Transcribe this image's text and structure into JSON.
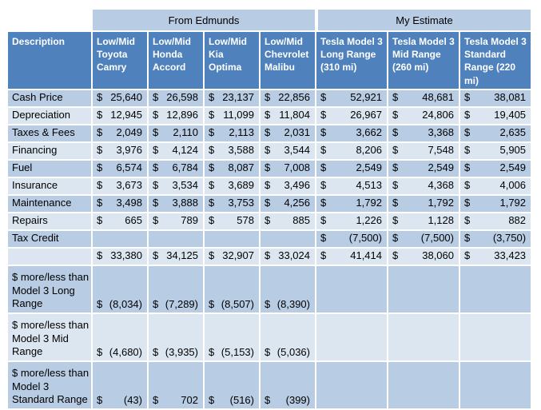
{
  "colors": {
    "header_dark": "#4f81bd",
    "band_medium": "#b8cce4",
    "band_light": "#dce6f1",
    "header_text": "#ffffff",
    "body_text": "#000000",
    "page_background": "#ffffff"
  },
  "chart_data": {
    "type": "table",
    "currency_symbol": "$",
    "group_headers": [
      {
        "label": "From Edmunds",
        "span": 4
      },
      {
        "label": "My Estimate",
        "span": 3
      }
    ],
    "columns": [
      "Description",
      "Low/Mid Toyota Camry",
      "Low/Mid Honda Accord",
      "Low/Mid Kia Optima",
      "Low/Mid Chevrolet Malibu",
      "Tesla Model 3 Long Range (310 mi)",
      "Tesla Model 3 Mid Range (260 mi)",
      "Tesla Model 3 Standard Range (220 mi)"
    ],
    "rows": [
      {
        "label": "Cash Price",
        "values": [
          "25,640",
          "26,598",
          "23,137",
          "22,856",
          "52,921",
          "48,681",
          "38,081"
        ]
      },
      {
        "label": "Depreciation",
        "values": [
          "12,945",
          "12,896",
          "11,099",
          "11,804",
          "26,967",
          "24,806",
          "19,405"
        ]
      },
      {
        "label": "Taxes & Fees",
        "values": [
          "2,049",
          "2,110",
          "2,113",
          "2,031",
          "3,662",
          "3,368",
          "2,635"
        ]
      },
      {
        "label": "Financing",
        "values": [
          "3,976",
          "4,124",
          "3,588",
          "3,544",
          "8,206",
          "7,548",
          "5,905"
        ]
      },
      {
        "label": "Fuel",
        "values": [
          "6,574",
          "6,784",
          "8,087",
          "7,008",
          "2,549",
          "2,549",
          "2,549"
        ]
      },
      {
        "label": "Insurance",
        "values": [
          "3,673",
          "3,534",
          "3,689",
          "3,496",
          "4,513",
          "4,368",
          "4,006"
        ]
      },
      {
        "label": "Maintenance",
        "values": [
          "3,498",
          "3,888",
          "3,753",
          "4,256",
          "1,792",
          "1,792",
          "1,792"
        ]
      },
      {
        "label": "Repairs",
        "values": [
          "665",
          "789",
          "578",
          "885",
          "1,226",
          "1,128",
          "882"
        ]
      },
      {
        "label": "Tax Credit",
        "values": [
          null,
          null,
          null,
          null,
          "(7,500)",
          "(7,500)",
          "(3,750)"
        ]
      },
      {
        "label": "",
        "values": [
          "33,380",
          "34,125",
          "32,907",
          "33,024",
          "41,414",
          "38,060",
          "33,423"
        ]
      },
      {
        "label": "$ more/less than Model 3 Long Range",
        "values": [
          "(8,034)",
          "(7,289)",
          "(8,507)",
          "(8,390)",
          null,
          null,
          null
        ]
      },
      {
        "label": "$ more/less than Model 3 Mid Range",
        "values": [
          "(4,680)",
          "(3,935)",
          "(5,153)",
          "(5,036)",
          null,
          null,
          null
        ]
      },
      {
        "label": "$ more/less than Model 3 Standard Range",
        "values": [
          "(43)",
          "702",
          "(516)",
          "(399)",
          null,
          null,
          null
        ]
      }
    ]
  }
}
